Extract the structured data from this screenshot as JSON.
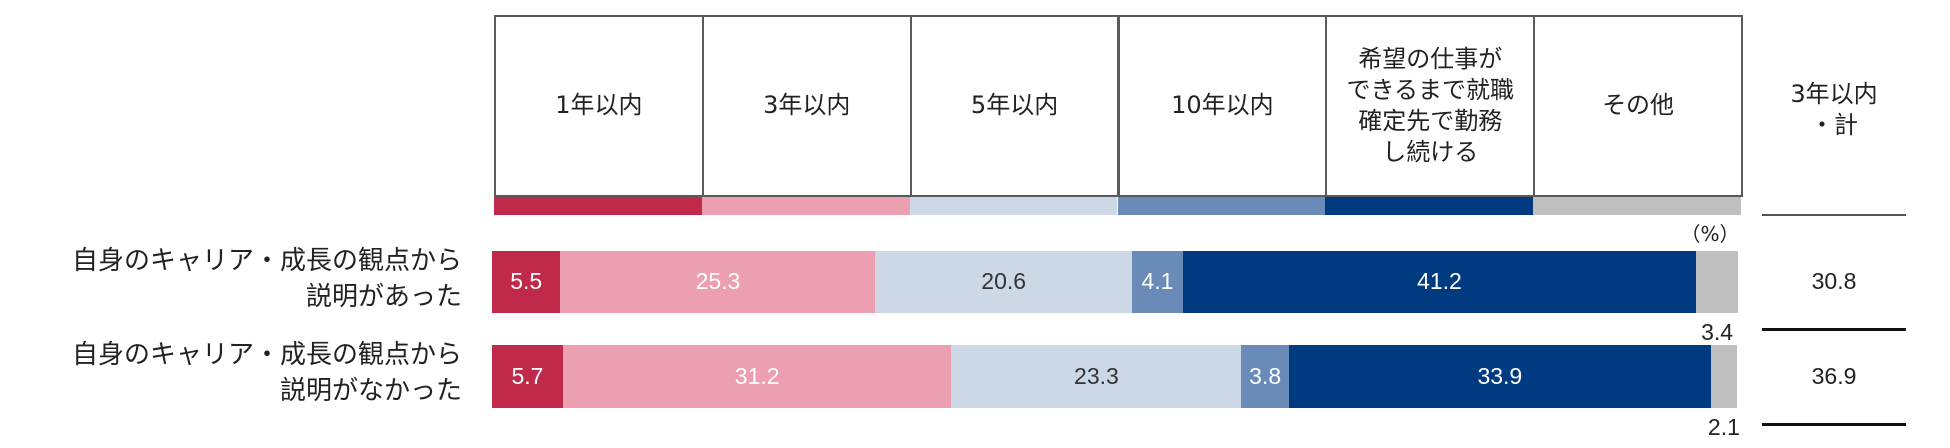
{
  "chart_data": {
    "type": "stacked-bar",
    "categories": [
      "自身のキャリア・成長の観点から\n説明があった",
      "自身のキャリア・成長の観点から\n説明がなかった"
    ],
    "series": [
      {
        "name": "1年以内",
        "color": "#c0294a",
        "values": [
          5.5,
          5.7
        ]
      },
      {
        "name": "3年以内",
        "color": "#eb9fb0",
        "values": [
          25.3,
          31.2
        ]
      },
      {
        "name": "5年以内",
        "color": "#ccd8e6",
        "values": [
          20.6,
          23.3
        ]
      },
      {
        "name": "10年以内",
        "color": "#6a8bb8",
        "values": [
          4.1,
          3.8
        ]
      },
      {
        "name": "希望の仕事が\nできるまで就職\n確定先で勤務\nし続ける",
        "color": "#003a80",
        "values": [
          41.2,
          33.9
        ]
      },
      {
        "name": "その他",
        "color": "#bfbfbf",
        "values": [
          3.4,
          2.1
        ]
      }
    ],
    "xlim": [
      0,
      100
    ],
    "unit": "（%）",
    "totals": {
      "name": "3年以内\n・計",
      "values": [
        30.8,
        36.9
      ]
    }
  }
}
